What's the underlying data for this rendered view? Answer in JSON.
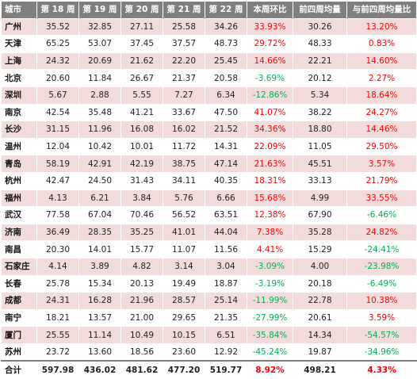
{
  "headers": [
    "城市",
    "第 18 周",
    "第 19 周",
    "第 20 周",
    "第 21 周",
    "第 22 周",
    "本周环比",
    "前四周均量",
    "与前四周均量比"
  ],
  "rows": [
    {
      "city": "广州",
      "w18": "35.52",
      "w19": "32.85",
      "w20": "27.11",
      "w21": "25.58",
      "w22": "34.26",
      "wow": "33.93%",
      "avg4": "30.26",
      "vs_avg": "13.20%",
      "wow_dir": "pos",
      "vs_dir": "pos",
      "shade": "pink"
    },
    {
      "city": "天津",
      "w18": "65.25",
      "w19": "53.07",
      "w20": "37.45",
      "w21": "37.57",
      "w22": "48.73",
      "wow": "29.72%",
      "avg4": "48.33",
      "vs_avg": "0.83%",
      "wow_dir": "pos",
      "vs_dir": "pos",
      "shade": "white"
    },
    {
      "city": "上海",
      "w18": "24.32",
      "w19": "20.69",
      "w20": "21.62",
      "w21": "22.20",
      "w22": "25.45",
      "wow": "14.66%",
      "avg4": "22.21",
      "vs_avg": "14.60%",
      "wow_dir": "pos",
      "vs_dir": "pos",
      "shade": "pink"
    },
    {
      "city": "北京",
      "w18": "20.60",
      "w19": "11.84",
      "w20": "26.67",
      "w21": "21.37",
      "w22": "20.58",
      "wow": "-3.69%",
      "avg4": "20.12",
      "vs_avg": "2.27%",
      "wow_dir": "neg",
      "vs_dir": "pos",
      "shade": "white"
    },
    {
      "city": "深圳",
      "w18": "5.67",
      "w19": "2.88",
      "w20": "5.55",
      "w21": "7.27",
      "w22": "6.34",
      "wow": "-12.86%",
      "avg4": "5.34",
      "vs_avg": "18.64%",
      "wow_dir": "neg",
      "vs_dir": "pos",
      "shade": "pink"
    },
    {
      "city": "南京",
      "w18": "42.54",
      "w19": "35.48",
      "w20": "41.21",
      "w21": "33.67",
      "w22": "47.50",
      "wow": "41.07%",
      "avg4": "38.22",
      "vs_avg": "24.27%",
      "wow_dir": "pos",
      "vs_dir": "pos",
      "shade": "white"
    },
    {
      "city": "长沙",
      "w18": "31.15",
      "w19": "11.96",
      "w20": "16.08",
      "w21": "16.02",
      "w22": "21.52",
      "wow": "34.36%",
      "avg4": "18.80",
      "vs_avg": "14.46%",
      "wow_dir": "pos",
      "vs_dir": "pos",
      "shade": "pink"
    },
    {
      "city": "温州",
      "w18": "12.04",
      "w19": "10.42",
      "w20": "10.01",
      "w21": "11.72",
      "w22": "14.31",
      "wow": "22.09%",
      "avg4": "11.05",
      "vs_avg": "29.50%",
      "wow_dir": "pos",
      "vs_dir": "pos",
      "shade": "white"
    },
    {
      "city": "青岛",
      "w18": "58.19",
      "w19": "42.91",
      "w20": "42.19",
      "w21": "38.75",
      "w22": "47.14",
      "wow": "21.63%",
      "avg4": "45.51",
      "vs_avg": "3.57%",
      "wow_dir": "pos",
      "vs_dir": "pos",
      "shade": "pink"
    },
    {
      "city": "杭州",
      "w18": "42.47",
      "w19": "24.50",
      "w20": "31.43",
      "w21": "34.11",
      "w22": "40.35",
      "wow": "18.31%",
      "avg4": "33.13",
      "vs_avg": "21.79%",
      "wow_dir": "pos",
      "vs_dir": "pos",
      "shade": "white"
    },
    {
      "city": "福州",
      "w18": "4.13",
      "w19": "6.21",
      "w20": "3.84",
      "w21": "5.76",
      "w22": "6.66",
      "wow": "15.68%",
      "avg4": "4.99",
      "vs_avg": "33.55%",
      "wow_dir": "pos",
      "vs_dir": "pos",
      "shade": "pink"
    },
    {
      "city": "武汉",
      "w18": "77.58",
      "w19": "67.04",
      "w20": "70.46",
      "w21": "56.52",
      "w22": "63.51",
      "wow": "12.38%",
      "avg4": "67.90",
      "vs_avg": "-6.46%",
      "wow_dir": "pos",
      "vs_dir": "neg",
      "shade": "white"
    },
    {
      "city": "济南",
      "w18": "36.49",
      "w19": "28.35",
      "w20": "35.25",
      "w21": "41.01",
      "w22": "44.04",
      "wow": "7.38%",
      "avg4": "35.28",
      "vs_avg": "24.82%",
      "wow_dir": "pos",
      "vs_dir": "pos",
      "shade": "pink"
    },
    {
      "city": "南昌",
      "w18": "20.30",
      "w19": "14.01",
      "w20": "15.77",
      "w21": "11.07",
      "w22": "11.56",
      "wow": "4.41%",
      "avg4": "15.29",
      "vs_avg": "-24.41%",
      "wow_dir": "pos",
      "vs_dir": "neg",
      "shade": "white"
    },
    {
      "city": "石家庄",
      "w18": "4.14",
      "w19": "3.89",
      "w20": "4.82",
      "w21": "3.14",
      "w22": "3.04",
      "wow": "-3.09%",
      "avg4": "4.00",
      "vs_avg": "-23.98%",
      "wow_dir": "neg",
      "vs_dir": "neg",
      "shade": "pink"
    },
    {
      "city": "长春",
      "w18": "25.78",
      "w19": "15.34",
      "w20": "20.13",
      "w21": "19.49",
      "w22": "18.87",
      "wow": "-3.19%",
      "avg4": "20.18",
      "vs_avg": "-6.49%",
      "wow_dir": "neg",
      "vs_dir": "neg",
      "shade": "white"
    },
    {
      "city": "成都",
      "w18": "24.31",
      "w19": "16.28",
      "w20": "21.96",
      "w21": "28.57",
      "w22": "25.14",
      "wow": "-11.99%",
      "avg4": "22.78",
      "vs_avg": "10.38%",
      "wow_dir": "neg",
      "vs_dir": "pos",
      "shade": "pink"
    },
    {
      "city": "南宁",
      "w18": "18.21",
      "w19": "13.57",
      "w20": "21.00",
      "w21": "29.65",
      "w22": "21.35",
      "wow": "-27.99%",
      "avg4": "20.61",
      "vs_avg": "3.59%",
      "wow_dir": "neg",
      "vs_dir": "pos",
      "shade": "white"
    },
    {
      "city": "厦门",
      "w18": "25.55",
      "w19": "11.14",
      "w20": "10.49",
      "w21": "10.15",
      "w22": "6.51",
      "wow": "-35.84%",
      "avg4": "14.34",
      "vs_avg": "-54.57%",
      "wow_dir": "neg",
      "vs_dir": "neg",
      "shade": "pink"
    },
    {
      "city": "苏州",
      "w18": "23.72",
      "w19": "13.60",
      "w20": "18.56",
      "w21": "23.60",
      "w22": "12.92",
      "wow": "-45.24%",
      "avg4": "19.87",
      "vs_avg": "-34.96%",
      "wow_dir": "neg",
      "vs_dir": "neg",
      "shade": "white"
    }
  ],
  "total": {
    "city": "合计",
    "w18": "597.98",
    "w19": "436.02",
    "w20": "481.62",
    "w21": "477.20",
    "w22": "519.77",
    "wow": "8.92%",
    "avg4": "498.21",
    "vs_avg": "4.33%",
    "wow_dir": "pos",
    "vs_dir": "pos"
  },
  "colors": {
    "header_bg": "#7f7f7f",
    "row_shade": "#f2dcdb",
    "positive": "#ff0000",
    "negative": "#00b050"
  }
}
